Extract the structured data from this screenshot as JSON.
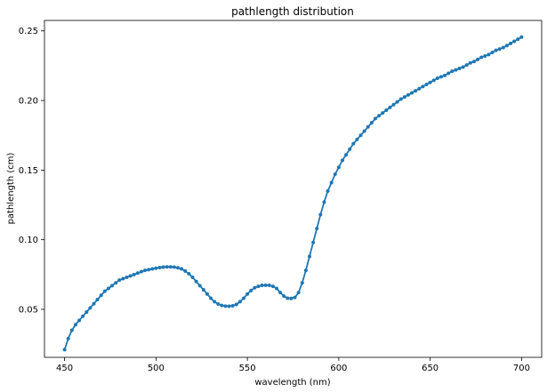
{
  "chart_data": {
    "type": "line",
    "title": "pathlength distribution",
    "xlabel": "wavelength (nm)",
    "ylabel": "pathlength (cm)",
    "xlim": [
      439,
      711
    ],
    "ylim": [
      0.0155,
      0.2575
    ],
    "xticks": [
      450,
      500,
      550,
      600,
      650,
      700
    ],
    "yticks": [
      0.05,
      0.1,
      0.15,
      0.2,
      0.25
    ],
    "ytick_labels": [
      "0.05",
      "0.10",
      "0.15",
      "0.20",
      "0.25"
    ],
    "grid": false,
    "marker": "dot",
    "series": [
      {
        "color": "#1f77b4",
        "x": [
          450,
          452,
          454,
          456,
          458,
          460,
          462,
          464,
          466,
          468,
          470,
          472,
          474,
          476,
          478,
          480,
          482,
          484,
          486,
          488,
          490,
          492,
          494,
          496,
          498,
          500,
          502,
          504,
          506,
          508,
          510,
          512,
          514,
          516,
          518,
          520,
          522,
          524,
          526,
          528,
          530,
          532,
          534,
          536,
          538,
          540,
          542,
          544,
          546,
          548,
          550,
          552,
          554,
          556,
          558,
          560,
          562,
          564,
          566,
          568,
          570,
          572,
          574,
          576,
          578,
          580,
          582,
          584,
          586,
          588,
          590,
          592,
          594,
          596,
          598,
          600,
          602,
          604,
          606,
          608,
          610,
          612,
          614,
          616,
          618,
          620,
          622,
          624,
          626,
          628,
          630,
          632,
          634,
          636,
          638,
          640,
          642,
          644,
          646,
          648,
          650,
          652,
          654,
          656,
          658,
          660,
          662,
          664,
          666,
          668,
          670,
          672,
          674,
          676,
          678,
          680,
          682,
          684,
          686,
          688,
          690,
          692,
          694,
          696,
          698,
          700
        ],
        "y": [
          0.021,
          0.029,
          0.035,
          0.039,
          0.042,
          0.045,
          0.048,
          0.051,
          0.054,
          0.057,
          0.06,
          0.063,
          0.065,
          0.067,
          0.069,
          0.071,
          0.072,
          0.073,
          0.074,
          0.075,
          0.076,
          0.077,
          0.078,
          0.0785,
          0.079,
          0.0795,
          0.08,
          0.0803,
          0.0805,
          0.0805,
          0.0803,
          0.0798,
          0.079,
          0.0775,
          0.0755,
          0.073,
          0.07,
          0.067,
          0.064,
          0.061,
          0.058,
          0.0555,
          0.0538,
          0.0528,
          0.0523,
          0.0522,
          0.0525,
          0.0535,
          0.0555,
          0.058,
          0.061,
          0.0635,
          0.0655,
          0.0665,
          0.0672,
          0.0673,
          0.0672,
          0.0665,
          0.065,
          0.062,
          0.0595,
          0.058,
          0.0578,
          0.0585,
          0.062,
          0.069,
          0.078,
          0.088,
          0.098,
          0.108,
          0.118,
          0.127,
          0.135,
          0.141,
          0.147,
          0.152,
          0.157,
          0.161,
          0.165,
          0.169,
          0.172,
          0.175,
          0.178,
          0.181,
          0.184,
          0.187,
          0.189,
          0.191,
          0.193,
          0.195,
          0.197,
          0.199,
          0.201,
          0.2025,
          0.204,
          0.2055,
          0.207,
          0.2085,
          0.21,
          0.2115,
          0.213,
          0.2145,
          0.216,
          0.217,
          0.218,
          0.2195,
          0.221,
          0.222,
          0.223,
          0.224,
          0.2255,
          0.227,
          0.228,
          0.2295,
          0.231,
          0.232,
          0.233,
          0.2345,
          0.236,
          0.237,
          0.238,
          0.2395,
          0.241,
          0.2425,
          0.244,
          0.2455
        ]
      }
    ]
  }
}
